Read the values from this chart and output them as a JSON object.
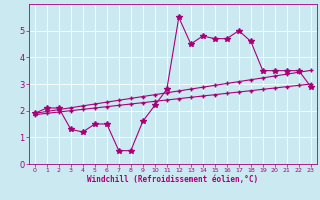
{
  "xlabel": "Windchill (Refroidissement éolien,°C)",
  "bg_color": "#cbe9f0",
  "line_color": "#aa0077",
  "x_data": [
    0,
    1,
    2,
    3,
    4,
    5,
    6,
    7,
    8,
    9,
    10,
    11,
    12,
    13,
    14,
    15,
    16,
    17,
    18,
    19,
    20,
    21,
    22,
    23
  ],
  "y_actual": [
    1.9,
    2.1,
    2.1,
    1.3,
    1.2,
    1.5,
    1.5,
    0.5,
    0.5,
    1.6,
    2.2,
    2.8,
    5.5,
    4.5,
    4.8,
    4.7,
    4.7,
    5.0,
    4.6,
    3.5,
    3.5,
    3.5,
    3.5,
    2.9
  ],
  "y_linear_low": [
    1.85,
    1.9,
    1.95,
    2.0,
    2.05,
    2.1,
    2.15,
    2.2,
    2.25,
    2.3,
    2.35,
    2.4,
    2.45,
    2.5,
    2.55,
    2.6,
    2.65,
    2.7,
    2.75,
    2.8,
    2.85,
    2.9,
    2.95,
    3.0
  ],
  "y_linear_high": [
    1.9,
    1.97,
    2.04,
    2.11,
    2.18,
    2.25,
    2.32,
    2.39,
    2.46,
    2.53,
    2.6,
    2.67,
    2.74,
    2.81,
    2.88,
    2.95,
    3.02,
    3.09,
    3.16,
    3.23,
    3.3,
    3.37,
    3.44,
    3.51
  ],
  "xlim": [
    -0.5,
    23.5
  ],
  "ylim": [
    0,
    6.0
  ],
  "yticks": [
    0,
    1,
    2,
    3,
    4,
    5
  ],
  "xticks": [
    0,
    1,
    2,
    3,
    4,
    5,
    6,
    7,
    8,
    9,
    10,
    11,
    12,
    13,
    14,
    15,
    16,
    17,
    18,
    19,
    20,
    21,
    22,
    23
  ],
  "grid_color": "#ffffff",
  "marker_actual": "*",
  "marker_linear": "+",
  "linewidth": 0.8,
  "markersize_actual": 4,
  "markersize_linear": 2.5,
  "xlabel_fontsize": 5.5,
  "tick_fontsize_x": 4.5,
  "tick_fontsize_y": 6.0
}
